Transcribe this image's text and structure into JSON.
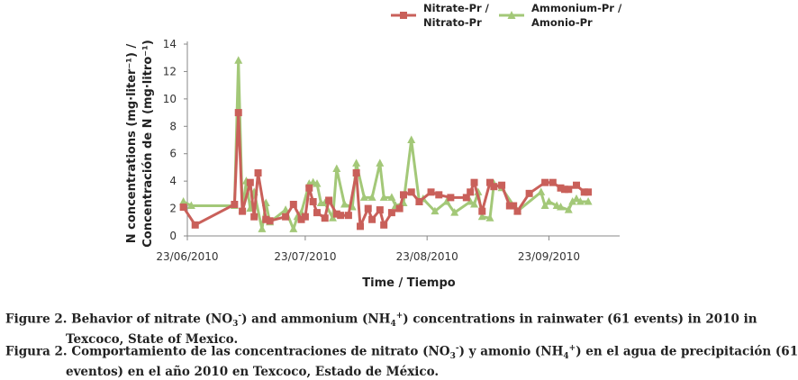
{
  "chart_data": {
    "type": "line",
    "xlabel": "Time / Tiempo",
    "ylabel_line1": "N concentrations (mg·liter⁻¹) /",
    "ylabel_line2": "Concentración de N (mg·litro⁻¹)",
    "ylim": [
      0,
      14
    ],
    "yticks": [
      0,
      2,
      4,
      6,
      8,
      10,
      12,
      14
    ],
    "xrange_days": [
      0,
      110
    ],
    "xticks": [
      {
        "day": 0,
        "label": "23/06/2010"
      },
      {
        "day": 30,
        "label": "23/07/2010"
      },
      {
        "day": 61,
        "label": "23/08/2010"
      },
      {
        "day": 92,
        "label": "23/09/2010"
      }
    ],
    "series": [
      {
        "name": "Nitrate-Pr / Nitrato-Pr",
        "legend_line1": "Nitrate-Pr /",
        "legend_line2": "Nitrato-Pr",
        "color": "#c9605a",
        "marker": "square",
        "x": [
          -1,
          2,
          12,
          13,
          14,
          16,
          17,
          18,
          20,
          21,
          25,
          27,
          29,
          30,
          31,
          32,
          33,
          35,
          36,
          38,
          39,
          41,
          43,
          44,
          46,
          47,
          49,
          50,
          52,
          54,
          55,
          57,
          59,
          62,
          64,
          67,
          71,
          72,
          73,
          75,
          77,
          78,
          80,
          82,
          83,
          84,
          87,
          91,
          93,
          95,
          96,
          97,
          99,
          101,
          102
        ],
        "y": [
          2.1,
          0.8,
          2.3,
          9.0,
          1.8,
          3.9,
          1.4,
          4.6,
          1.2,
          1.1,
          1.4,
          2.3,
          1.2,
          1.4,
          3.5,
          2.5,
          1.7,
          1.3,
          2.6,
          1.6,
          1.5,
          1.5,
          4.6,
          0.7,
          2.0,
          1.2,
          1.9,
          0.8,
          1.7,
          2.0,
          3.0,
          3.2,
          2.5,
          3.2,
          3.0,
          2.8,
          2.8,
          3.2,
          3.9,
          1.8,
          3.9,
          3.6,
          3.7,
          2.2,
          2.2,
          1.8,
          3.1,
          3.9,
          3.9,
          3.5,
          3.4,
          3.4,
          3.7,
          3.2,
          3.2
        ]
      },
      {
        "name": "Ammonium-Pr / Amonio-Pr",
        "legend_line1": "Ammonium-Pr /",
        "legend_line2": "Amonio-Pr",
        "color": "#a3c878",
        "marker": "triangle",
        "x": [
          -1,
          1,
          12,
          13,
          14,
          15,
          16,
          17,
          19,
          20,
          21,
          25,
          27,
          28,
          29,
          31,
          32,
          33,
          34,
          35,
          37,
          38,
          40,
          42,
          43,
          45,
          47,
          49,
          50,
          52,
          53,
          55,
          57,
          59,
          60,
          63,
          66,
          68,
          72,
          73,
          74,
          75,
          77,
          78,
          80,
          84,
          90,
          91,
          92,
          94,
          95,
          97,
          98,
          99,
          100,
          102
        ],
        "y": [
          2.5,
          2.2,
          2.2,
          12.8,
          1.9,
          4.0,
          2.0,
          3.2,
          0.5,
          2.4,
          1.0,
          1.9,
          0.5,
          1.4,
          1.7,
          3.8,
          3.9,
          3.8,
          2.4,
          2.4,
          1.3,
          4.9,
          2.3,
          2.1,
          5.3,
          2.8,
          2.8,
          5.3,
          2.8,
          2.8,
          2.2,
          2.4,
          7.0,
          2.5,
          2.7,
          1.8,
          2.5,
          1.7,
          2.5,
          2.3,
          3.2,
          1.4,
          1.3,
          3.8,
          3.5,
          1.8,
          3.2,
          2.2,
          2.5,
          2.2,
          2.1,
          1.9,
          2.5,
          2.7,
          2.5,
          2.5
        ]
      }
    ]
  },
  "caption": {
    "en_prefix": "Figure 2. Behavior of nitrate (NO",
    "en_sub1": "3",
    "en_sup1": "-",
    "en_mid": ") and ammonium (NH",
    "en_sub2": "4",
    "en_sup2": "+",
    "en_suffix": ") concentrations in rainwater (61 events) in 2010 in",
    "en_line2": "Texcoco, State of Mexico.",
    "es_prefix": "Figura 2. Comportamiento de las concentraciones de nitrato (NO",
    "es_sub1": "3",
    "es_sup1": "-",
    "es_mid": ") y amonio (NH",
    "es_sub2": "4",
    "es_sup2": "+",
    "es_suffix": ") en el agua de precipitación (61",
    "es_line2": "eventos) en el año 2010 en Texcoco, Estado de México."
  }
}
